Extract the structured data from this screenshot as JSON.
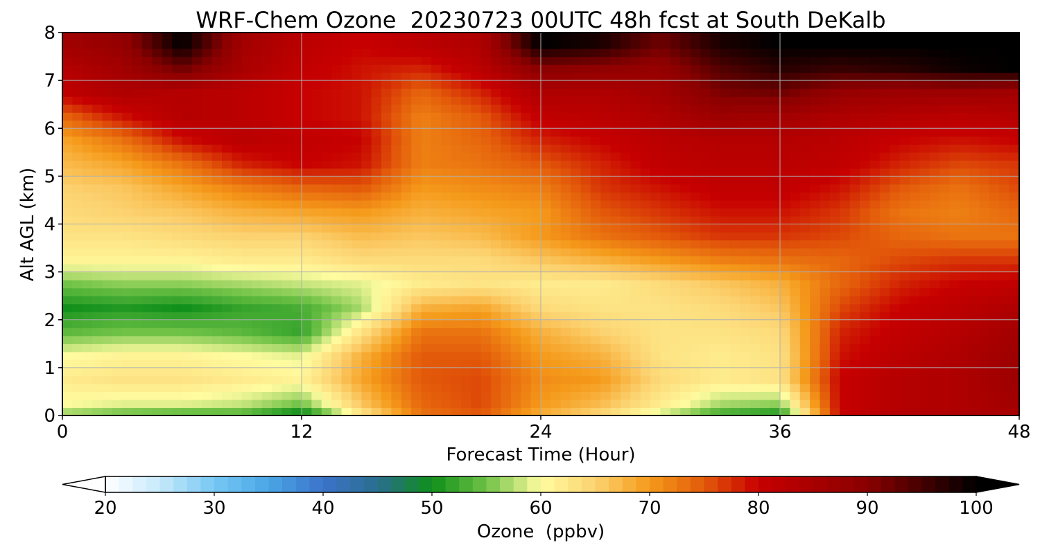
{
  "chart_data": {
    "type": "heatmap",
    "title": "WRF-Chem Ozone  20230723 00UTC 48h fcst at South DeKalb",
    "xlabel": "Forecast Time (Hour)",
    "ylabel": "Alt AGL (km)",
    "xlim": [
      0,
      48
    ],
    "ylim": [
      0,
      8
    ],
    "x_ticks": [
      "0",
      "12",
      "24",
      "36",
      "48"
    ],
    "y_ticks": [
      "0",
      "1",
      "2",
      "3",
      "4",
      "5",
      "6",
      "7",
      "8"
    ],
    "grid": true,
    "x": [
      0,
      3,
      6,
      9,
      12,
      15,
      18,
      21,
      24,
      27,
      30,
      33,
      36,
      39,
      42,
      45,
      48
    ],
    "y": [
      0,
      0.25,
      0.75,
      1.25,
      1.75,
      2.25,
      2.75,
      3.25,
      3.75,
      4.25,
      4.75,
      5.25,
      5.75,
      6.25,
      6.75,
      7.25,
      7.75
    ],
    "z": [
      [
        56,
        54,
        53,
        53,
        48,
        62,
        73,
        75,
        68,
        64,
        58,
        52,
        50,
        80,
        83,
        84,
        85
      ],
      [
        60,
        59,
        59,
        58,
        55,
        66,
        74,
        76,
        70,
        67,
        62,
        57,
        56,
        80,
        83,
        84,
        86
      ],
      [
        62,
        63,
        63,
        62,
        61,
        69,
        75,
        76,
        71,
        70,
        64,
        62,
        63,
        80,
        83,
        84,
        87
      ],
      [
        60,
        61,
        61,
        60,
        59,
        68,
        75,
        75,
        70,
        68,
        63,
        62,
        63,
        79,
        82,
        84,
        87
      ],
      [
        54,
        55,
        55,
        54,
        52,
        63,
        73,
        73,
        68,
        65,
        63,
        63,
        64,
        78,
        81,
        83,
        86
      ],
      [
        50,
        51,
        50,
        52,
        53,
        57,
        68,
        69,
        64,
        63,
        63,
        64,
        66,
        76,
        80,
        82,
        84
      ],
      [
        55,
        56,
        56,
        57,
        58,
        59,
        62,
        63,
        62,
        62,
        64,
        66,
        68,
        74,
        78,
        80,
        81
      ],
      [
        61,
        61,
        61,
        62,
        62,
        64,
        64,
        64,
        66,
        68,
        70,
        72,
        73,
        74,
        76,
        77,
        77
      ],
      [
        63,
        63,
        64,
        65,
        65,
        67,
        66,
        67,
        70,
        73,
        75,
        77,
        77,
        76,
        74,
        73,
        73
      ],
      [
        64,
        65,
        66,
        68,
        69,
        70,
        68,
        69,
        70,
        75,
        77,
        79,
        79,
        77,
        73,
        72,
        74
      ],
      [
        65,
        66,
        69,
        72,
        74,
        75,
        70,
        71,
        72,
        77,
        79,
        81,
        81,
        79,
        75,
        73,
        76
      ],
      [
        67,
        69,
        73,
        78,
        80,
        79,
        72,
        73,
        75,
        78,
        81,
        82,
        82,
        81,
        78,
        76,
        77
      ],
      [
        69,
        73,
        79,
        82,
        81,
        80,
        72,
        74,
        78,
        80,
        82,
        83,
        83,
        82,
        80,
        79,
        80
      ],
      [
        74,
        79,
        83,
        82,
        80,
        79,
        72,
        75,
        81,
        82,
        84,
        87,
        86,
        84,
        83,
        82,
        83
      ],
      [
        81,
        84,
        83,
        82,
        80,
        79,
        74,
        78,
        84,
        84,
        86,
        91,
        92,
        88,
        87,
        87,
        86
      ],
      [
        83,
        86,
        92,
        85,
        81,
        79,
        78,
        82,
        90,
        89,
        88,
        94,
        97,
        96,
        97,
        99,
        100
      ],
      [
        86,
        88,
        100,
        86,
        82,
        80,
        82,
        84,
        100,
        98,
        92,
        98,
        100,
        100,
        100,
        100,
        100
      ]
    ],
    "colorbar": {
      "label": "Ozone  (ppbv)",
      "min": 20,
      "max": 100,
      "ticks": [
        "20",
        "30",
        "40",
        "50",
        "60",
        "70",
        "80",
        "90",
        "100"
      ],
      "extend": "both",
      "stops": [
        [
          20,
          "#ffffff"
        ],
        [
          25,
          "#c6e9fb"
        ],
        [
          30,
          "#77c8f4"
        ],
        [
          35,
          "#4aa6e6"
        ],
        [
          40,
          "#3b73c9"
        ],
        [
          45,
          "#2a6e8f"
        ],
        [
          50,
          "#0f8f1a"
        ],
        [
          55,
          "#6fc246"
        ],
        [
          60,
          "#fffca0"
        ],
        [
          65,
          "#fcd270"
        ],
        [
          70,
          "#f59a1a"
        ],
        [
          75,
          "#e35a0a"
        ],
        [
          80,
          "#c70000"
        ],
        [
          90,
          "#8a0000"
        ],
        [
          100,
          "#000000"
        ]
      ]
    }
  }
}
